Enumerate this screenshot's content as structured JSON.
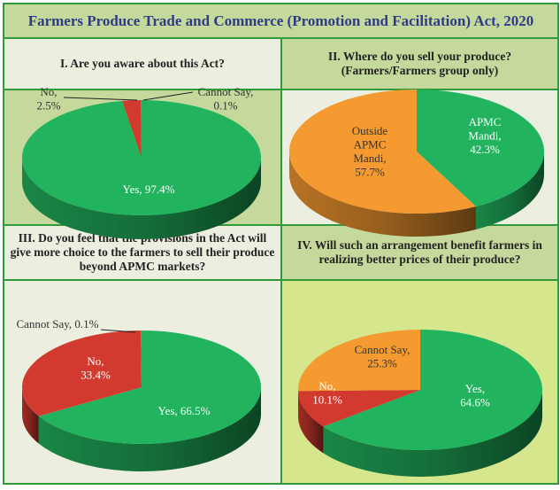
{
  "title": "Farmers Produce Trade and Commerce (Promotion and Facilitation) Act, 2020",
  "colors": {
    "green": "#22b35e",
    "red": "#d33a2f",
    "orange": "#f59a30",
    "border": "#2e9a3a",
    "title_text": "#2f3b86"
  },
  "chart_data": [
    {
      "type": "pie",
      "title": "I. Are you aware about this Act?",
      "slices": [
        {
          "label": "Yes",
          "value": 97.4,
          "color": "#22b35e"
        },
        {
          "label": "No",
          "value": 2.5,
          "color": "#d33a2f"
        },
        {
          "label": "Cannot Say",
          "value": 0.1,
          "color": "#22b35e"
        }
      ]
    },
    {
      "type": "pie",
      "title": "II. Where do you sell your produce?",
      "subtitle": "(Farmers/Farmers group only)",
      "slices": [
        {
          "label": "APMC Mandi",
          "value": 42.3,
          "color": "#22b35e"
        },
        {
          "label": "Outside APMC Mandi",
          "value": 57.7,
          "color": "#f59a30"
        }
      ]
    },
    {
      "type": "pie",
      "title": "III. Do you feel that the provisions in the Act will give more choice to the farmers to sell their produce beyond APMC markets?",
      "slices": [
        {
          "label": "Yes",
          "value": 66.5,
          "color": "#22b35e"
        },
        {
          "label": "No",
          "value": 33.4,
          "color": "#d33a2f"
        },
        {
          "label": "Cannot Say",
          "value": 0.1,
          "color": "#22b35e"
        }
      ]
    },
    {
      "type": "pie",
      "title": "IV. Will such an arrangement benefit farmers in realizing better prices of their produce?",
      "slices": [
        {
          "label": "Yes",
          "value": 64.6,
          "color": "#22b35e"
        },
        {
          "label": "No",
          "value": 10.1,
          "color": "#d33a2f"
        },
        {
          "label": "Cannot Say",
          "value": 25.3,
          "color": "#f59a30"
        }
      ]
    }
  ]
}
